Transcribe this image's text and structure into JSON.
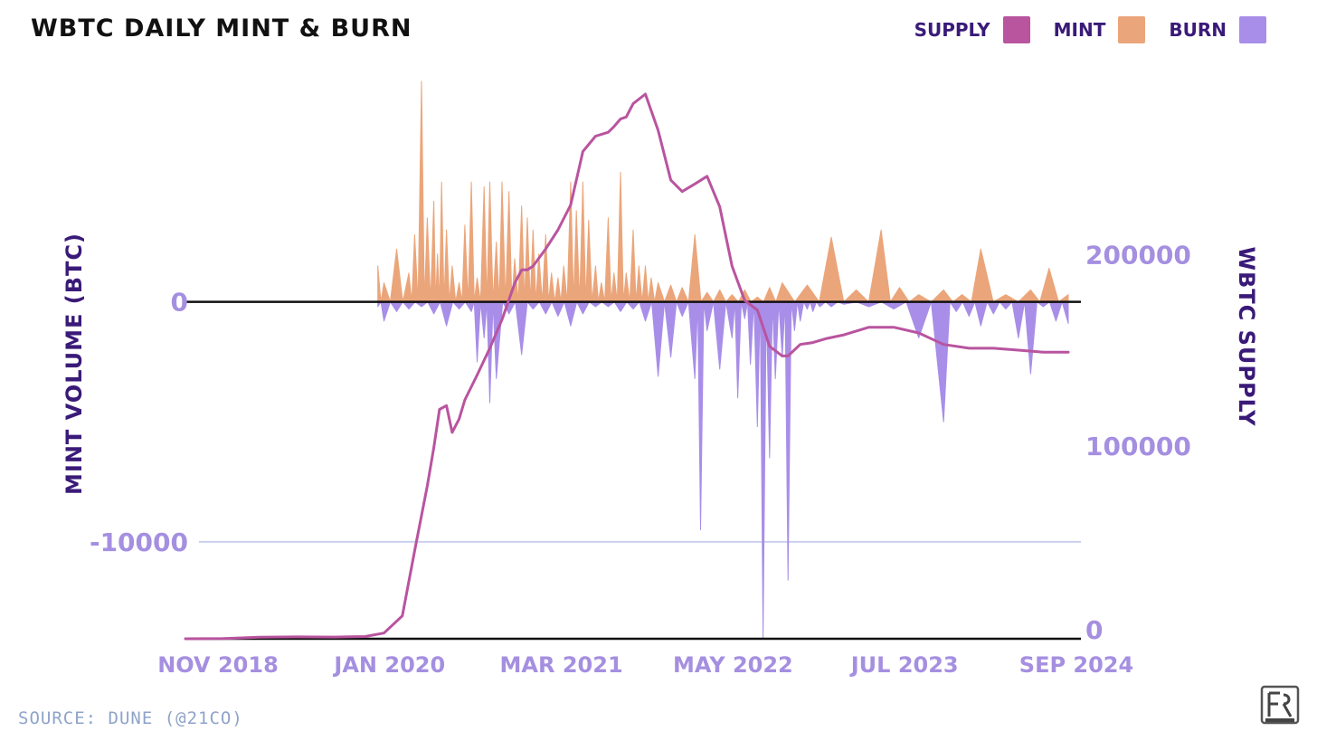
{
  "title": "WBTC DAILY MINT & BURN",
  "legend": [
    {
      "label": "SUPPLY",
      "color": "#b9549f"
    },
    {
      "label": "MINT",
      "color": "#eba57a"
    },
    {
      "label": "BURN",
      "color": "#a88ee8"
    }
  ],
  "source": "SOURCE: DUNE (@21CO)",
  "chart_data": {
    "type": "bar",
    "title": "WBTC DAILY MINT & BURN",
    "xlabel": "",
    "ylabel": "MINT VOLUME (BTC)",
    "y2label": "WBTC SUPPLY",
    "x_tick_labels": [
      "NOV 2018",
      "JAN 2020",
      "MAR 2021",
      "MAY 2022",
      "JUL 2023",
      "SEP 2024"
    ],
    "y_tick_labels": [
      "0",
      "-10000"
    ],
    "y_ticks": [
      0,
      -10000
    ],
    "y2_tick_labels": [
      "200000",
      "100000",
      "0"
    ],
    "y2_ticks": [
      200000,
      100000,
      0
    ],
    "ylim": [
      -14000,
      9300
    ],
    "y2lim": [
      0,
      285000
    ],
    "x_range": [
      "2018-11-01",
      "2024-11-01"
    ],
    "grid": "horizontal line at -10000",
    "legend_position": "top-right",
    "colors": {
      "supply": "#b9549f",
      "mint": "#eba57a",
      "burn": "#a88ee8",
      "zero_line": "#111111",
      "grid": "#ccd0ee"
    },
    "series": [
      {
        "name": "MINT",
        "type": "area",
        "x": [
          "2020-02-15",
          "2020-03-01",
          "2020-04-01",
          "2020-05-01",
          "2020-05-15",
          "2020-06-01",
          "2020-06-15",
          "2020-07-01",
          "2020-07-10",
          "2020-07-20",
          "2020-08-01",
          "2020-08-15",
          "2020-09-01",
          "2020-09-15",
          "2020-10-01",
          "2020-10-15",
          "2020-11-01",
          "2020-11-15",
          "2020-12-01",
          "2020-12-15",
          "2021-01-01",
          "2021-01-15",
          "2021-02-01",
          "2021-02-15",
          "2021-03-01",
          "2021-03-15",
          "2021-04-01",
          "2021-04-15",
          "2021-05-01",
          "2021-05-15",
          "2021-06-01",
          "2021-06-15",
          "2021-07-01",
          "2021-07-15",
          "2021-08-01",
          "2021-08-15",
          "2021-09-01",
          "2021-09-15",
          "2021-10-01",
          "2021-10-15",
          "2021-11-01",
          "2021-11-15",
          "2021-12-01",
          "2021-12-15",
          "2022-01-01",
          "2022-02-01",
          "2022-03-01",
          "2022-04-01",
          "2022-05-01",
          "2022-06-01",
          "2022-07-01",
          "2022-08-01",
          "2022-09-01",
          "2022-10-01",
          "2022-11-01",
          "2023-01-01",
          "2023-03-01",
          "2023-05-01",
          "2023-07-01",
          "2023-08-15",
          "2023-10-01",
          "2023-12-01",
          "2024-01-15",
          "2024-03-01",
          "2024-05-01",
          "2024-07-01",
          "2024-08-15",
          "2024-10-01"
        ],
        "values": [
          1500,
          800,
          2200,
          1200,
          2800,
          9200,
          3500,
          4200,
          2000,
          5000,
          3000,
          1500,
          800,
          3200,
          5000,
          1000,
          4800,
          5000,
          2500,
          5000,
          4600,
          1800,
          4000,
          3500,
          3000,
          2000,
          2800,
          1200,
          1000,
          1500,
          5000,
          3800,
          5000,
          3400,
          1500,
          800,
          3500,
          1200,
          5400,
          1200,
          3000,
          1500,
          1500,
          1000,
          800,
          700,
          600,
          2800,
          400,
          500,
          300,
          500,
          200,
          600,
          800,
          700,
          2700,
          500,
          3000,
          600,
          300,
          500,
          300,
          2200,
          300,
          500,
          1400,
          300
        ]
      },
      {
        "name": "BURN",
        "type": "area",
        "x": [
          "2020-02-15",
          "2020-03-01",
          "2020-04-01",
          "2020-05-01",
          "2020-06-01",
          "2020-07-01",
          "2020-08-01",
          "2020-09-01",
          "2020-10-01",
          "2020-10-15",
          "2020-11-01",
          "2020-11-15",
          "2020-12-01",
          "2021-01-01",
          "2021-02-01",
          "2021-03-01",
          "2021-04-01",
          "2021-05-01",
          "2021-06-01",
          "2021-07-01",
          "2021-08-01",
          "2021-09-01",
          "2021-10-01",
          "2021-11-01",
          "2021-12-01",
          "2022-01-01",
          "2022-02-01",
          "2022-03-01",
          "2022-04-01",
          "2022-04-15",
          "2022-05-01",
          "2022-06-01",
          "2022-07-01",
          "2022-07-15",
          "2022-08-01",
          "2022-08-15",
          "2022-09-01",
          "2022-09-15",
          "2022-10-01",
          "2022-10-15",
          "2022-11-01",
          "2022-11-15",
          "2022-12-01",
          "2022-12-15",
          "2023-01-01",
          "2023-01-15",
          "2023-02-01",
          "2023-03-01",
          "2023-04-01",
          "2023-06-01",
          "2023-08-01",
          "2023-10-01",
          "2023-12-01",
          "2024-01-01",
          "2024-02-01",
          "2024-03-01",
          "2024-04-01",
          "2024-05-01",
          "2024-06-01",
          "2024-07-01",
          "2024-08-01",
          "2024-09-01",
          "2024-10-01"
        ],
        "values": [
          -200,
          -800,
          -400,
          -300,
          -200,
          -500,
          -1000,
          -300,
          -400,
          -2500,
          -1500,
          -4200,
          -3200,
          -500,
          -2200,
          -300,
          -500,
          -600,
          -1000,
          -500,
          -200,
          -200,
          -400,
          -300,
          -800,
          -3100,
          -2300,
          -600,
          -3200,
          -9500,
          -1200,
          -2800,
          -1500,
          -4000,
          -700,
          -2600,
          -5200,
          -14000,
          -6500,
          -3200,
          -2300,
          -11600,
          -1200,
          -800,
          -300,
          -400,
          -200,
          -200,
          -100,
          -200,
          -300,
          -1500,
          -5000,
          -400,
          -600,
          -1000,
          -500,
          -300,
          -1500,
          -3000,
          -200,
          -800,
          -900
        ]
      },
      {
        "name": "SUPPLY",
        "type": "line",
        "axis": "right",
        "x": [
          "2018-11-01",
          "2019-02-01",
          "2019-05-01",
          "2019-08-01",
          "2019-11-01",
          "2020-01-15",
          "2020-03-01",
          "2020-04-15",
          "2020-05-15",
          "2020-06-15",
          "2020-07-01",
          "2020-07-15",
          "2020-08-01",
          "2020-08-15",
          "2020-09-01",
          "2020-09-15",
          "2020-10-15",
          "2020-11-15",
          "2020-12-15",
          "2021-01-15",
          "2021-02-01",
          "2021-02-15",
          "2021-03-01",
          "2021-04-01",
          "2021-05-01",
          "2021-06-01",
          "2021-07-01",
          "2021-08-01",
          "2021-09-01",
          "2021-09-15",
          "2021-10-01",
          "2021-10-15",
          "2021-11-01",
          "2021-12-01",
          "2022-01-01",
          "2022-02-01",
          "2022-03-01",
          "2022-04-01",
          "2022-05-01",
          "2022-06-01",
          "2022-07-01",
          "2022-08-01",
          "2022-09-01",
          "2022-10-01",
          "2022-11-01",
          "2022-11-15",
          "2022-12-15",
          "2023-01-15",
          "2023-02-15",
          "2023-04-01",
          "2023-06-01",
          "2023-08-01",
          "2023-10-01",
          "2023-12-01",
          "2024-02-01",
          "2024-04-01",
          "2024-06-01",
          "2024-08-01",
          "2024-10-01"
        ],
        "values": [
          0,
          100,
          800,
          1000,
          900,
          1200,
          3000,
          12000,
          46000,
          80000,
          100000,
          120000,
          122000,
          108000,
          115000,
          125000,
          138000,
          152000,
          167000,
          186000,
          193000,
          193000,
          195000,
          204000,
          214000,
          227000,
          255000,
          263000,
          265000,
          268000,
          272000,
          273000,
          280000,
          285000,
          266000,
          240000,
          234000,
          238000,
          242000,
          226000,
          195000,
          177000,
          172000,
          153000,
          148000,
          148000,
          154000,
          155000,
          157000,
          159000,
          163000,
          163000,
          160000,
          154000,
          152000,
          152000,
          151000,
          150000,
          150000
        ]
      }
    ]
  }
}
